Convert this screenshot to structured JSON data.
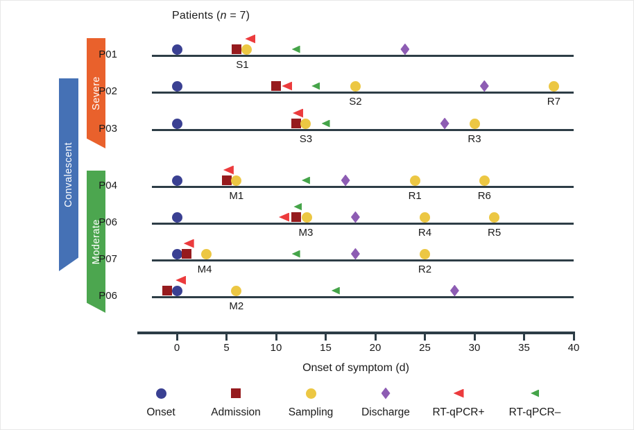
{
  "colors": {
    "timeline": "#2d3d46",
    "text": "#1a1a1a",
    "markers": {
      "onset": "#3a4092",
      "admission": "#961b1e",
      "sampling": "#ecc743",
      "discharge": "#8d5cb3",
      "rtqpcr_pos": "#ec3b3d",
      "rtqpcr_neg": "#45a449"
    },
    "banner_severe": "#e9612c",
    "banner_moderate": "#4ca64f",
    "banner_convalescent": "#4571b5"
  },
  "chart_data": {
    "type": "scatter",
    "subtype": "patient-event-timeline",
    "title": "Patients (n = 7)",
    "title_parts": {
      "prefix": "Patients (",
      "n": "n",
      "suffix": " = 7)"
    },
    "xlabel": "Onset of symptom (d)",
    "xlim": [
      -4,
      40
    ],
    "xticks": [
      0,
      5,
      10,
      15,
      20,
      25,
      30,
      35,
      40
    ],
    "grid": false,
    "legend_position": "bottom",
    "legend": [
      {
        "marker": "onset",
        "label": "Onset"
      },
      {
        "marker": "admission",
        "label": "Admission"
      },
      {
        "marker": "sampling",
        "label": "Sampling"
      },
      {
        "marker": "discharge",
        "label": "Discharge"
      },
      {
        "marker": "rtqpcr_pos",
        "label": "RT-qPCR+"
      },
      {
        "marker": "rtqpcr_neg",
        "label": "RT-qPCR–"
      }
    ],
    "severity_groups": [
      {
        "label": "Severe",
        "patients": [
          "P01",
          "P02",
          "P03"
        ]
      },
      {
        "label": "Moderate",
        "patients": [
          "P04",
          "P06",
          "P07",
          "P06"
        ]
      }
    ],
    "phase_group": {
      "label": "Convalescent",
      "covers": [
        "P02",
        "P03",
        "P04",
        "P06",
        "P07"
      ]
    },
    "patients": [
      {
        "id": "P01",
        "severity": "Severe",
        "events": [
          {
            "type": "onset",
            "day": 0
          },
          {
            "type": "admission",
            "day": 6
          },
          {
            "type": "sampling",
            "day": 7
          },
          {
            "type": "rtqpcr_pos",
            "day": 7.4,
            "raised": true
          },
          {
            "type": "rtqpcr_neg",
            "day": 12
          },
          {
            "type": "discharge",
            "day": 23
          }
        ],
        "sample_labels": [
          {
            "text": "S1",
            "day": 6.6
          }
        ]
      },
      {
        "id": "P02",
        "severity": "Severe",
        "events": [
          {
            "type": "onset",
            "day": 0
          },
          {
            "type": "admission",
            "day": 10
          },
          {
            "type": "rtqpcr_pos",
            "day": 11.1
          },
          {
            "type": "rtqpcr_neg",
            "day": 14
          },
          {
            "type": "sampling",
            "day": 18
          },
          {
            "type": "discharge",
            "day": 31
          },
          {
            "type": "sampling",
            "day": 38
          }
        ],
        "sample_labels": [
          {
            "text": "S2",
            "day": 18
          },
          {
            "text": "R7",
            "day": 38
          }
        ]
      },
      {
        "id": "P03",
        "severity": "Severe",
        "events": [
          {
            "type": "onset",
            "day": 0
          },
          {
            "type": "admission",
            "day": 12
          },
          {
            "type": "rtqpcr_pos",
            "day": 12.2,
            "raised": true
          },
          {
            "type": "sampling",
            "day": 13
          },
          {
            "type": "rtqpcr_neg",
            "day": 15
          },
          {
            "type": "discharge",
            "day": 27
          },
          {
            "type": "sampling",
            "day": 30
          }
        ],
        "sample_labels": [
          {
            "text": "S3",
            "day": 13
          },
          {
            "text": "R3",
            "day": 30
          }
        ]
      },
      {
        "id": "P04",
        "severity": "Moderate",
        "events": [
          {
            "type": "onset",
            "day": 0
          },
          {
            "type": "admission",
            "day": 5
          },
          {
            "type": "rtqpcr_pos",
            "day": 5.2,
            "raised": true
          },
          {
            "type": "sampling",
            "day": 6
          },
          {
            "type": "rtqpcr_neg",
            "day": 13
          },
          {
            "type": "discharge",
            "day": 17
          },
          {
            "type": "sampling",
            "day": 24
          },
          {
            "type": "sampling",
            "day": 31
          }
        ],
        "sample_labels": [
          {
            "text": "M1",
            "day": 6
          },
          {
            "text": "R1",
            "day": 24
          },
          {
            "text": "R6",
            "day": 31
          }
        ]
      },
      {
        "id": "P06",
        "severity": "Moderate",
        "events": [
          {
            "type": "onset",
            "day": 0
          },
          {
            "type": "rtqpcr_pos",
            "day": 10.8
          },
          {
            "type": "admission",
            "day": 12
          },
          {
            "type": "rtqpcr_neg",
            "day": 12.2,
            "raised": true
          },
          {
            "type": "sampling",
            "day": 13.1
          },
          {
            "type": "discharge",
            "day": 18
          },
          {
            "type": "sampling",
            "day": 25
          },
          {
            "type": "sampling",
            "day": 32
          }
        ],
        "sample_labels": [
          {
            "text": "M3",
            "day": 13
          },
          {
            "text": "R4",
            "day": 25
          },
          {
            "text": "R5",
            "day": 32
          }
        ]
      },
      {
        "id": "P07",
        "severity": "Moderate",
        "events": [
          {
            "type": "onset",
            "day": 0
          },
          {
            "type": "admission",
            "day": 1
          },
          {
            "type": "rtqpcr_pos",
            "day": 1.2,
            "raised": true
          },
          {
            "type": "sampling",
            "day": 3
          },
          {
            "type": "rtqpcr_neg",
            "day": 12
          },
          {
            "type": "discharge",
            "day": 18
          },
          {
            "type": "sampling",
            "day": 25
          }
        ],
        "sample_labels": [
          {
            "text": "M4",
            "day": 2.8
          },
          {
            "text": "R2",
            "day": 25
          }
        ]
      },
      {
        "id": "P06",
        "severity": "Moderate",
        "events": [
          {
            "type": "admission",
            "day": -1
          },
          {
            "type": "onset",
            "day": 0
          },
          {
            "type": "rtqpcr_pos",
            "day": 0.4,
            "raised": true
          },
          {
            "type": "sampling",
            "day": 6
          },
          {
            "type": "rtqpcr_neg",
            "day": 16
          },
          {
            "type": "discharge",
            "day": 28
          }
        ],
        "sample_labels": [
          {
            "text": "M2",
            "day": 6
          }
        ]
      }
    ]
  }
}
